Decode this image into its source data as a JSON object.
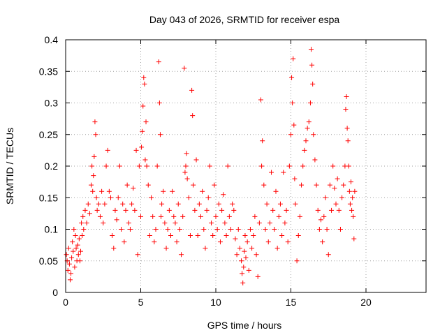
{
  "chart_data": {
    "type": "scatter",
    "title": "Day 043 of 2026, SRMTID for receiver espa",
    "xlabel": "GPS time / hours",
    "ylabel": "SRMTID / TECUs",
    "xlim": [
      0,
      24
    ],
    "ylim": [
      0,
      0.4
    ],
    "xticks": [
      0,
      5,
      10,
      15,
      20
    ],
    "yticks": [
      0,
      0.05,
      0.1,
      0.15,
      0.2,
      0.25,
      0.3,
      0.35,
      0.4
    ],
    "xtick_labels": [
      "0",
      "5",
      "10",
      "15",
      "20"
    ],
    "ytick_labels": [
      "0",
      "0.05",
      "0.1",
      "0.15",
      "0.2",
      "0.25",
      "0.3",
      "0.35",
      "0.4"
    ],
    "grid": true,
    "marker": "+",
    "color": "#ff0000",
    "series": [
      {
        "name": "SRMTID",
        "points": [
          [
            0.05,
            0.06
          ],
          [
            0.1,
            0.05
          ],
          [
            0.15,
            0.035
          ],
          [
            0.2,
            0.07
          ],
          [
            0.25,
            0.045
          ],
          [
            0.3,
            0.02
          ],
          [
            0.35,
            0.03
          ],
          [
            0.4,
            0.055
          ],
          [
            0.45,
            0.08
          ],
          [
            0.5,
            0.065
          ],
          [
            0.55,
            0.1
          ],
          [
            0.6,
            0.04
          ],
          [
            0.65,
            0.09
          ],
          [
            0.7,
            0.07
          ],
          [
            0.75,
            0.05
          ],
          [
            0.8,
            0.075
          ],
          [
            0.85,
            0.06
          ],
          [
            0.9,
            0.085
          ],
          [
            0.95,
            0.05
          ],
          [
            1.0,
            0.065
          ],
          [
            1.05,
            0.11
          ],
          [
            1.1,
            0.09
          ],
          [
            1.15,
            0.12
          ],
          [
            1.2,
            0.1
          ],
          [
            1.3,
            0.13
          ],
          [
            1.4,
            0.11
          ],
          [
            1.5,
            0.14
          ],
          [
            1.6,
            0.125
          ],
          [
            1.7,
            0.17
          ],
          [
            1.75,
            0.2
          ],
          [
            1.8,
            0.16
          ],
          [
            1.85,
            0.185
          ],
          [
            1.9,
            0.215
          ],
          [
            1.95,
            0.27
          ],
          [
            2.0,
            0.25
          ],
          [
            2.05,
            0.15
          ],
          [
            2.1,
            0.13
          ],
          [
            2.2,
            0.14
          ],
          [
            2.3,
            0.12
          ],
          [
            2.4,
            0.16
          ],
          [
            2.5,
            0.11
          ],
          [
            2.6,
            0.14
          ],
          [
            2.7,
            0.2
          ],
          [
            2.8,
            0.225
          ],
          [
            2.9,
            0.16
          ],
          [
            3.0,
            0.15
          ],
          [
            3.1,
            0.09
          ],
          [
            3.2,
            0.07
          ],
          [
            3.3,
            0.13
          ],
          [
            3.4,
            0.115
          ],
          [
            3.5,
            0.15
          ],
          [
            3.6,
            0.2
          ],
          [
            3.7,
            0.1
          ],
          [
            3.8,
            0.14
          ],
          [
            3.9,
            0.08
          ],
          [
            4.0,
            0.13
          ],
          [
            4.1,
            0.17
          ],
          [
            4.2,
            0.11
          ],
          [
            4.3,
            0.1
          ],
          [
            4.4,
            0.14
          ],
          [
            4.5,
            0.165
          ],
          [
            4.6,
            0.13
          ],
          [
            4.7,
            0.225
          ],
          [
            4.8,
            0.06
          ],
          [
            4.9,
            0.2
          ],
          [
            5.0,
            0.12
          ],
          [
            5.05,
            0.23
          ],
          [
            5.1,
            0.255
          ],
          [
            5.15,
            0.295
          ],
          [
            5.2,
            0.34
          ],
          [
            5.25,
            0.33
          ],
          [
            5.3,
            0.21
          ],
          [
            5.35,
            0.27
          ],
          [
            5.4,
            0.2
          ],
          [
            5.5,
            0.17
          ],
          [
            5.6,
            0.09
          ],
          [
            5.7,
            0.15
          ],
          [
            5.8,
            0.12
          ],
          [
            5.9,
            0.08
          ],
          [
            6.0,
            0.1
          ],
          [
            6.1,
            0.2
          ],
          [
            6.2,
            0.365
          ],
          [
            6.25,
            0.3
          ],
          [
            6.3,
            0.25
          ],
          [
            6.35,
            0.12
          ],
          [
            6.4,
            0.14
          ],
          [
            6.5,
            0.16
          ],
          [
            6.6,
            0.11
          ],
          [
            6.7,
            0.07
          ],
          [
            6.8,
            0.1
          ],
          [
            6.9,
            0.13
          ],
          [
            7.0,
            0.09
          ],
          [
            7.1,
            0.16
          ],
          [
            7.2,
            0.12
          ],
          [
            7.3,
            0.11
          ],
          [
            7.4,
            0.08
          ],
          [
            7.5,
            0.14
          ],
          [
            7.6,
            0.1
          ],
          [
            7.7,
            0.06
          ],
          [
            7.8,
            0.12
          ],
          [
            7.9,
            0.355
          ],
          [
            7.95,
            0.19
          ],
          [
            8.0,
            0.2
          ],
          [
            8.05,
            0.22
          ],
          [
            8.1,
            0.18
          ],
          [
            8.2,
            0.15
          ],
          [
            8.3,
            0.09
          ],
          [
            8.4,
            0.32
          ],
          [
            8.45,
            0.28
          ],
          [
            8.5,
            0.17
          ],
          [
            8.6,
            0.13
          ],
          [
            8.7,
            0.21
          ],
          [
            8.8,
            0.09
          ],
          [
            8.9,
            0.14
          ],
          [
            9.0,
            0.12
          ],
          [
            9.1,
            0.16
          ],
          [
            9.2,
            0.1
          ],
          [
            9.3,
            0.07
          ],
          [
            9.4,
            0.13
          ],
          [
            9.5,
            0.15
          ],
          [
            9.6,
            0.2
          ],
          [
            9.7,
            0.11
          ],
          [
            9.8,
            0.09
          ],
          [
            9.9,
            0.17
          ],
          [
            10.0,
            0.12
          ],
          [
            10.1,
            0.1
          ],
          [
            10.2,
            0.14
          ],
          [
            10.3,
            0.08
          ],
          [
            10.4,
            0.13
          ],
          [
            10.5,
            0.155
          ],
          [
            10.6,
            0.11
          ],
          [
            10.7,
            0.09
          ],
          [
            10.8,
            0.2
          ],
          [
            10.9,
            0.12
          ],
          [
            11.0,
            0.1
          ],
          [
            11.1,
            0.14
          ],
          [
            11.2,
            0.13
          ],
          [
            11.3,
            0.085
          ],
          [
            11.4,
            0.06
          ],
          [
            11.5,
            0.1
          ],
          [
            11.6,
            0.07
          ],
          [
            11.7,
            0.05
          ],
          [
            11.75,
            0.03
          ],
          [
            11.8,
            0.015
          ],
          [
            11.85,
            0.04
          ],
          [
            11.9,
            0.065
          ],
          [
            11.95,
            0.09
          ],
          [
            12.0,
            0.055
          ],
          [
            12.1,
            0.08
          ],
          [
            12.2,
            0.035
          ],
          [
            12.3,
            0.1
          ],
          [
            12.4,
            0.07
          ],
          [
            12.5,
            0.09
          ],
          [
            12.6,
            0.12
          ],
          [
            12.7,
            0.06
          ],
          [
            12.8,
            0.025
          ],
          [
            12.9,
            0.11
          ],
          [
            13.0,
            0.305
          ],
          [
            13.05,
            0.2
          ],
          [
            13.1,
            0.24
          ],
          [
            13.2,
            0.17
          ],
          [
            13.3,
            0.1
          ],
          [
            13.4,
            0.14
          ],
          [
            13.5,
            0.08
          ],
          [
            13.6,
            0.11
          ],
          [
            13.7,
            0.19
          ],
          [
            13.8,
            0.13
          ],
          [
            13.9,
            0.1
          ],
          [
            14.0,
            0.16
          ],
          [
            14.1,
            0.07
          ],
          [
            14.2,
            0.12
          ],
          [
            14.3,
            0.14
          ],
          [
            14.4,
            0.09
          ],
          [
            14.5,
            0.19
          ],
          [
            14.6,
            0.11
          ],
          [
            14.7,
            0.13
          ],
          [
            14.8,
            0.08
          ],
          [
            14.9,
            0.2
          ],
          [
            15.0,
            0.25
          ],
          [
            15.05,
            0.34
          ],
          [
            15.1,
            0.3
          ],
          [
            15.15,
            0.37
          ],
          [
            15.2,
            0.265
          ],
          [
            15.25,
            0.18
          ],
          [
            15.3,
            0.14
          ],
          [
            15.4,
            0.05
          ],
          [
            15.5,
            0.09
          ],
          [
            15.6,
            0.12
          ],
          [
            15.7,
            0.17
          ],
          [
            15.8,
            0.2
          ],
          [
            15.9,
            0.225
          ],
          [
            16.0,
            0.24
          ],
          [
            16.1,
            0.26
          ],
          [
            16.2,
            0.27
          ],
          [
            16.3,
            0.3
          ],
          [
            16.35,
            0.385
          ],
          [
            16.4,
            0.36
          ],
          [
            16.45,
            0.33
          ],
          [
            16.5,
            0.25
          ],
          [
            16.6,
            0.21
          ],
          [
            16.7,
            0.17
          ],
          [
            16.8,
            0.13
          ],
          [
            16.9,
            0.1
          ],
          [
            17.0,
            0.115
          ],
          [
            17.1,
            0.08
          ],
          [
            17.2,
            0.12
          ],
          [
            17.3,
            0.15
          ],
          [
            17.4,
            0.1
          ],
          [
            17.5,
            0.06
          ],
          [
            17.6,
            0.17
          ],
          [
            17.7,
            0.13
          ],
          [
            17.8,
            0.2
          ],
          [
            17.9,
            0.165
          ],
          [
            18.0,
            0.14
          ],
          [
            18.1,
            0.18
          ],
          [
            18.2,
            0.13
          ],
          [
            18.3,
            0.1
          ],
          [
            18.4,
            0.15
          ],
          [
            18.5,
            0.17
          ],
          [
            18.6,
            0.2
          ],
          [
            18.65,
            0.29
          ],
          [
            18.7,
            0.31
          ],
          [
            18.75,
            0.26
          ],
          [
            18.8,
            0.24
          ],
          [
            18.85,
            0.2
          ],
          [
            18.9,
            0.16
          ],
          [
            18.95,
            0.14
          ],
          [
            19.0,
            0.175
          ],
          [
            19.05,
            0.13
          ],
          [
            19.1,
            0.15
          ],
          [
            19.15,
            0.12
          ],
          [
            19.2,
            0.085
          ],
          [
            19.25,
            0.16
          ]
        ]
      }
    ]
  }
}
